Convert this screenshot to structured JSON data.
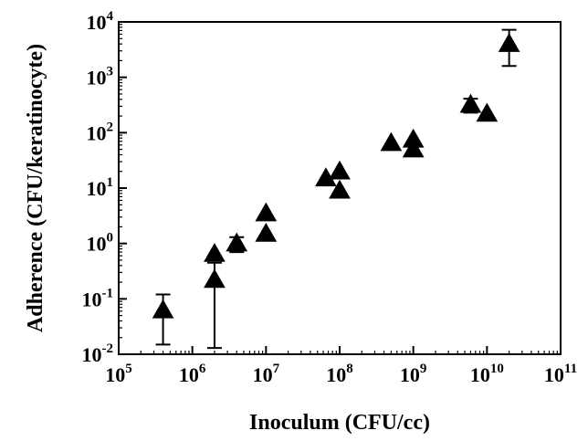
{
  "chart_data": {
    "type": "scatter",
    "title": "",
    "xlabel": "Inoculum (CFU/cc)",
    "ylabel": "Adherence (CFU/keratinocyte)",
    "xscale": "log",
    "yscale": "log",
    "xlim": [
      100000,
      100000000000
    ],
    "ylim": [
      0.01,
      10000
    ],
    "grid": false,
    "legend": "none",
    "marker": "triangle",
    "marker_color": "#000000",
    "x_ticks": [
      {
        "value": 100000,
        "base": "10",
        "exp": "5"
      },
      {
        "value": 1000000,
        "base": "10",
        "exp": "6"
      },
      {
        "value": 10000000,
        "base": "10",
        "exp": "7"
      },
      {
        "value": 100000000,
        "base": "10",
        "exp": "8"
      },
      {
        "value": 1000000000,
        "base": "10",
        "exp": "9"
      },
      {
        "value": 10000000000,
        "base": "10",
        "exp": "10"
      },
      {
        "value": 100000000000,
        "base": "10",
        "exp": "11"
      }
    ],
    "y_ticks": [
      {
        "value": 0.01,
        "base": "10",
        "exp": "-2"
      },
      {
        "value": 0.1,
        "base": "10",
        "exp": "-1"
      },
      {
        "value": 1,
        "base": "10",
        "exp": "0"
      },
      {
        "value": 10,
        "base": "10",
        "exp": "1"
      },
      {
        "value": 100,
        "base": "10",
        "exp": "2"
      },
      {
        "value": 1000,
        "base": "10",
        "exp": "3"
      },
      {
        "value": 10000,
        "base": "10",
        "exp": "4"
      }
    ],
    "points": [
      {
        "x": 400000,
        "y": 0.062,
        "err_low": 0.015,
        "err_high": 0.12
      },
      {
        "x": 2000000,
        "y": 0.22,
        "err_low": 0.013,
        "err_high": 0.45
      },
      {
        "x": 2000000,
        "y": 0.65
      },
      {
        "x": 4000000,
        "y": 1.0,
        "err_low": 0.7,
        "err_high": 1.3
      },
      {
        "x": 10000000,
        "y": 1.5
      },
      {
        "x": 10000000,
        "y": 3.5
      },
      {
        "x": 65000000,
        "y": 15
      },
      {
        "x": 100000000,
        "y": 20
      },
      {
        "x": 100000000,
        "y": 9
      },
      {
        "x": 500000000,
        "y": 65
      },
      {
        "x": 1000000000,
        "y": 75
      },
      {
        "x": 1000000000,
        "y": 50
      },
      {
        "x": 6000000000,
        "y": 320,
        "err_low": 230,
        "err_high": 410
      },
      {
        "x": 10000000000,
        "y": 220
      },
      {
        "x": 20000000000,
        "y": 4000,
        "err_low": 1600,
        "err_high": 7200
      }
    ]
  }
}
